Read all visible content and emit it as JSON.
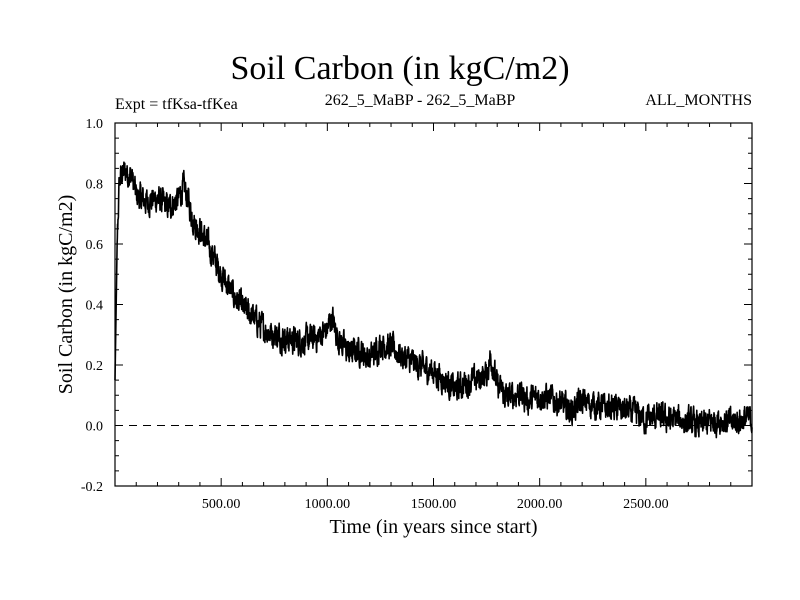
{
  "chart_data": {
    "type": "line",
    "title": "Soil Carbon (in kgC/m2)",
    "experiment_label": "Expt = tfKsa-tfKea",
    "subtitle": "262_5_MaBP - 262_5_MaBP",
    "period_label": "ALL_MONTHS",
    "xlabel": "Time (in years since start)",
    "ylabel": "Soil Carbon (in kgC/m2)",
    "xlim": [
      0,
      3000
    ],
    "ylim": [
      -0.2,
      1.0
    ],
    "x_ticks": [
      500,
      1000,
      1500,
      2000,
      2500
    ],
    "x_tick_labels": [
      "500.00",
      "1000.00",
      "1500.00",
      "2000.00",
      "2500.00"
    ],
    "y_ticks": [
      -0.2,
      0.0,
      0.2,
      0.4,
      0.6,
      0.8,
      1.0
    ],
    "y_tick_labels": [
      "-0.2",
      "0.0",
      "0.2",
      "0.4",
      "0.6",
      "0.8",
      "1.0"
    ],
    "reference_line": 0.0,
    "series": [
      {
        "name": "Soil Carbon",
        "x": [
          0,
          10,
          20,
          30,
          50,
          80,
          100,
          150,
          200,
          250,
          300,
          320,
          340,
          360,
          380,
          400,
          420,
          450,
          500,
          550,
          600,
          650,
          700,
          750,
          800,
          850,
          900,
          950,
          1000,
          1020,
          1050,
          1100,
          1150,
          1200,
          1250,
          1300,
          1350,
          1400,
          1450,
          1500,
          1550,
          1600,
          1650,
          1700,
          1750,
          1770,
          1800,
          1850,
          1900,
          1950,
          2000,
          2050,
          2100,
          2150,
          2200,
          2250,
          2300,
          2350,
          2400,
          2450,
          2500,
          2550,
          2600,
          2650,
          2700,
          2750,
          2800,
          2850,
          2900,
          2950,
          3000
        ],
        "values": [
          0.15,
          0.6,
          0.8,
          0.83,
          0.84,
          0.82,
          0.76,
          0.74,
          0.75,
          0.72,
          0.75,
          0.79,
          0.76,
          0.7,
          0.66,
          0.65,
          0.62,
          0.58,
          0.5,
          0.44,
          0.39,
          0.36,
          0.32,
          0.3,
          0.29,
          0.28,
          0.28,
          0.29,
          0.32,
          0.36,
          0.29,
          0.24,
          0.25,
          0.22,
          0.27,
          0.26,
          0.23,
          0.21,
          0.19,
          0.18,
          0.15,
          0.12,
          0.14,
          0.15,
          0.17,
          0.23,
          0.13,
          0.09,
          0.11,
          0.08,
          0.1,
          0.09,
          0.07,
          0.05,
          0.08,
          0.07,
          0.06,
          0.06,
          0.05,
          0.04,
          0.02,
          0.03,
          0.02,
          0.02,
          0.01,
          0.0,
          0.01,
          0.02,
          0.01,
          0.02,
          0.02
        ]
      }
    ]
  }
}
